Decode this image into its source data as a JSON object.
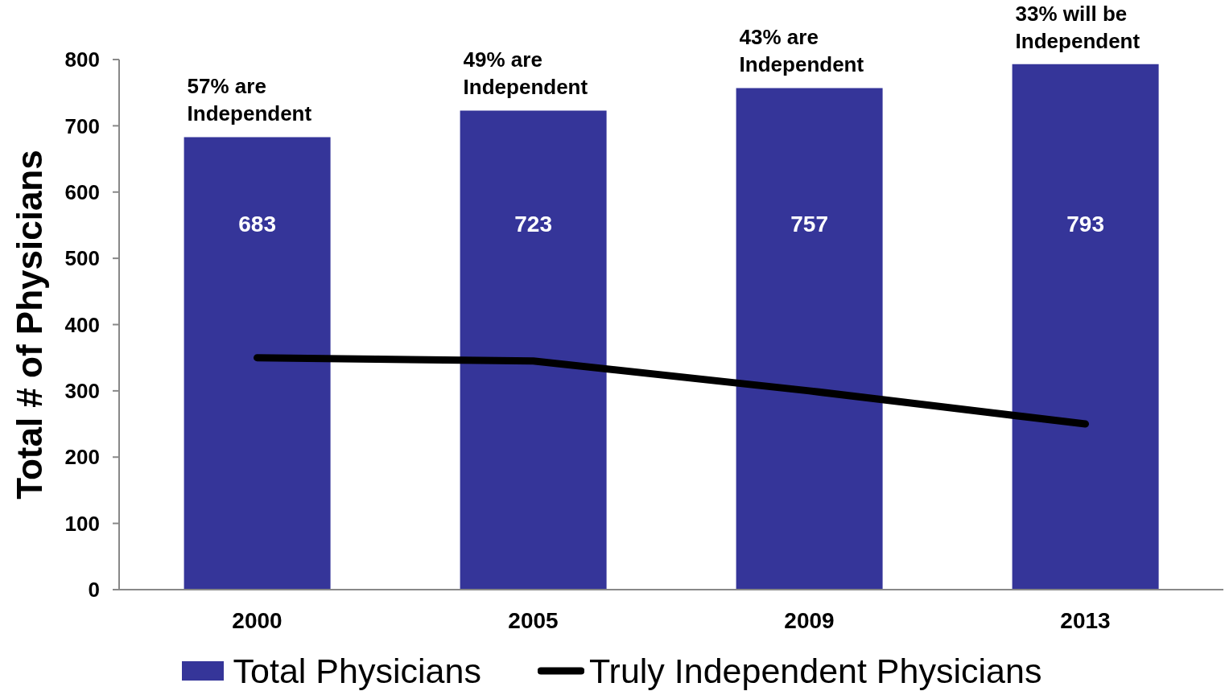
{
  "chart_data": {
    "type": "bar",
    "categories": [
      "2000",
      "2005",
      "2009",
      "2013"
    ],
    "series": [
      {
        "name": "Total Physicians",
        "color": "#353599",
        "values": [
          683,
          723,
          757,
          793
        ],
        "value_labels": [
          "683",
          "723",
          "757",
          "793"
        ]
      },
      {
        "name": "Truly Independent Physicians",
        "type": "line",
        "color": "#000000",
        "values": [
          350,
          345,
          300,
          250
        ]
      }
    ],
    "ylabel": "Total # of Physicians",
    "ylim": [
      0,
      800
    ],
    "yticks": [
      0,
      100,
      200,
      300,
      400,
      500,
      600,
      700,
      800
    ],
    "grid": false,
    "legend": "bottom",
    "marker": "none",
    "line_style": "solid",
    "annotations": [
      {
        "text": "57% are Independent",
        "x": "2000",
        "y": 683
      },
      {
        "text": "49% are Independent",
        "x": "2005",
        "y": 723
      },
      {
        "text": "43% are Independent",
        "x": "2009",
        "y": 757
      },
      {
        "text": "33% will be Independent",
        "x": "2013",
        "y": 793
      }
    ]
  }
}
